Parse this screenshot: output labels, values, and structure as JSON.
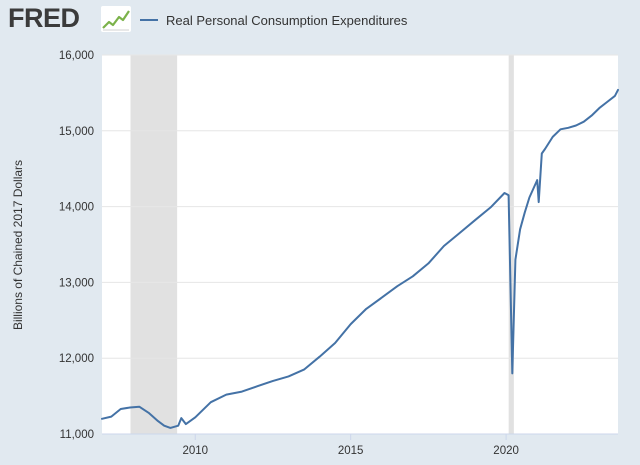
{
  "logo": {
    "text": "FRED"
  },
  "chart_data": {
    "type": "line",
    "title": "",
    "series": [
      {
        "name": "Real Personal Consumption Expenditures",
        "color": "#4472a6",
        "x": [
          2007.0,
          2007.3,
          2007.6,
          2007.9,
          2008.2,
          2008.5,
          2008.8,
          2009.0,
          2009.2,
          2009.45,
          2009.55,
          2009.7,
          2010.0,
          2010.5,
          2011.0,
          2011.5,
          2012.0,
          2012.5,
          2013.0,
          2013.5,
          2014.0,
          2014.5,
          2015.0,
          2015.5,
          2016.0,
          2016.5,
          2017.0,
          2017.5,
          2018.0,
          2018.5,
          2019.0,
          2019.5,
          2019.95,
          2020.08,
          2020.2,
          2020.3,
          2020.45,
          2020.6,
          2020.75,
          2021.0,
          2021.05,
          2021.15,
          2021.25,
          2021.5,
          2021.75,
          2022.0,
          2022.25,
          2022.5,
          2022.75,
          2023.0,
          2023.25,
          2023.5,
          2023.6
        ],
        "values": [
          11200,
          11230,
          11330,
          11350,
          11360,
          11280,
          11170,
          11110,
          11080,
          11110,
          11210,
          11130,
          11220,
          11420,
          11520,
          11560,
          11630,
          11700,
          11760,
          11850,
          12020,
          12200,
          12450,
          12650,
          12800,
          12950,
          13080,
          13250,
          13480,
          13650,
          13820,
          13990,
          14180,
          14150,
          11800,
          13300,
          13700,
          13920,
          14120,
          14350,
          14060,
          14700,
          14760,
          14920,
          15020,
          15040,
          15070,
          15120,
          15200,
          15300,
          15380,
          15460,
          15540
        ]
      }
    ],
    "xlabel": "",
    "ylabel": "Billions of Chained 2017 Dollars",
    "xlim": [
      2007.0,
      2023.6
    ],
    "ylim": [
      11000,
      16000
    ],
    "xticks": [
      2010,
      2015,
      2020
    ],
    "yticks": [
      11000,
      12000,
      13000,
      14000,
      15000,
      16000
    ],
    "xtick_labels": [
      "2010",
      "2015",
      "2020"
    ],
    "ytick_labels": [
      "11,000",
      "12,000",
      "13,000",
      "14,000",
      "15,000",
      "16,000"
    ],
    "recessions": [
      {
        "start": 2007.917,
        "end": 2009.417
      },
      {
        "start": 2020.083,
        "end": 2020.25
      }
    ],
    "recession_color": "#e1e1e1",
    "grid": true,
    "legend": "top-left"
  }
}
